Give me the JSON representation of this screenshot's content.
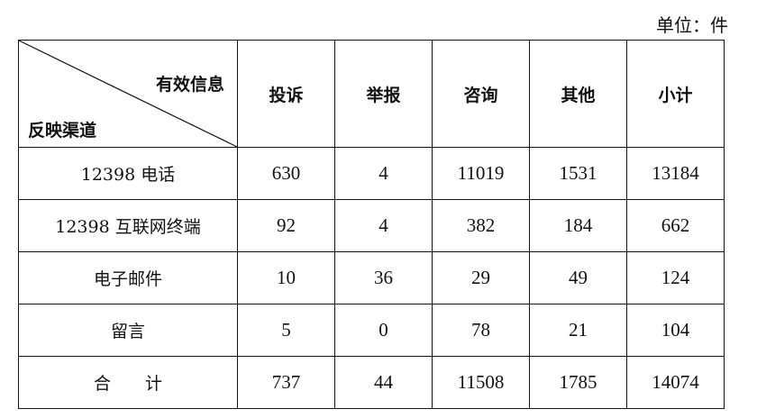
{
  "unit_label": "单位：件",
  "table": {
    "corner_top": "有效信息",
    "corner_bottom": "反映渠道",
    "headers": [
      "投诉",
      "举报",
      "咨询",
      "其他",
      "小计"
    ],
    "rows": [
      {
        "channel": "12398 电话",
        "values": [
          "630",
          "4",
          "11019",
          "1531",
          "13184"
        ]
      },
      {
        "channel": "12398 互联网终端",
        "values": [
          "92",
          "4",
          "382",
          "184",
          "662"
        ]
      },
      {
        "channel": "电子邮件",
        "values": [
          "10",
          "36",
          "29",
          "49",
          "124"
        ]
      },
      {
        "channel": "留言",
        "values": [
          "5",
          "0",
          "78",
          "21",
          "104"
        ]
      },
      {
        "channel": "合　　计",
        "values": [
          "737",
          "44",
          "11508",
          "1785",
          "14074"
        ]
      }
    ]
  }
}
